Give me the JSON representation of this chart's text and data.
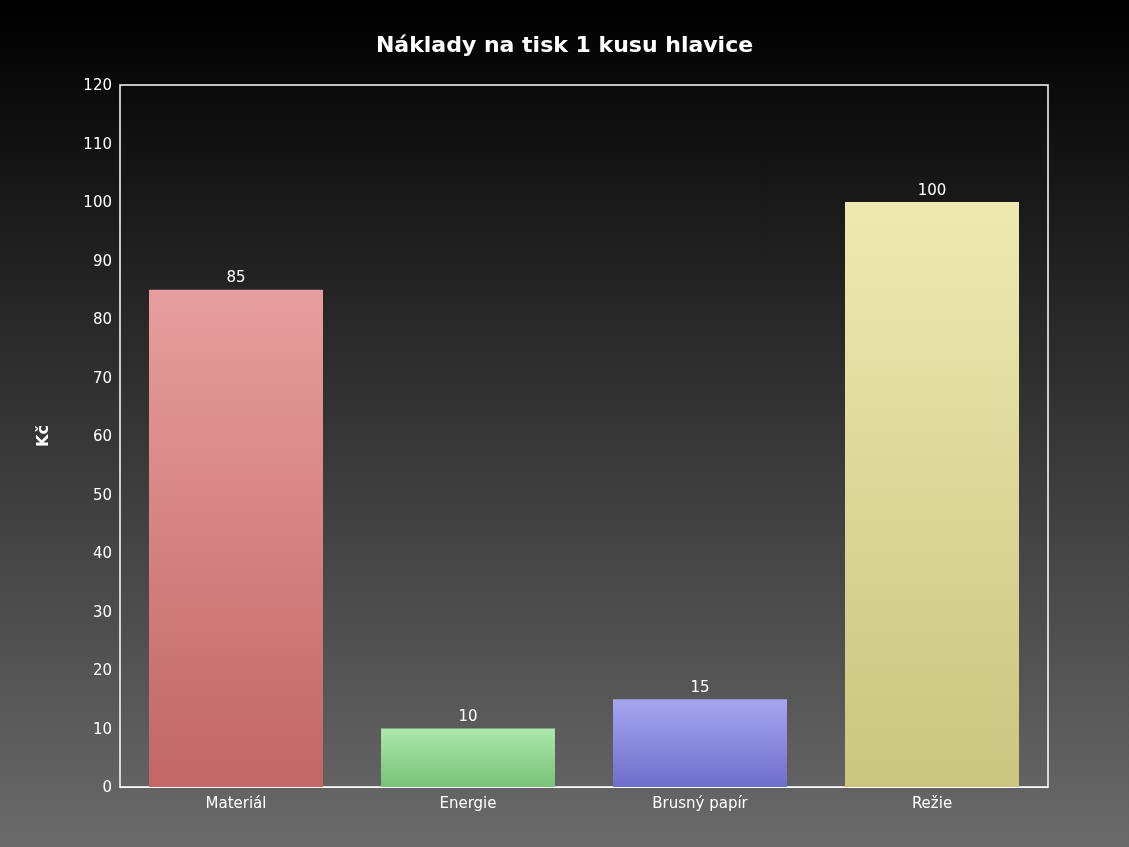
{
  "chart_data": {
    "type": "bar",
    "title": "Náklady na tisk 1 kusu hlavice",
    "ylabel": "Kč",
    "categories": [
      "Materiál",
      "Energie",
      "Brusný papír",
      "Režie"
    ],
    "values": [
      85,
      10,
      15,
      100
    ],
    "colors": [
      "#dc7474",
      "#88dc88",
      "#7e7ee8",
      "#e6e090"
    ],
    "ylim": [
      0,
      120
    ],
    "yticks": [
      0,
      10,
      20,
      30,
      40,
      50,
      60,
      70,
      80,
      90,
      100,
      110,
      120
    ],
    "grid": false,
    "data_labels": true
  }
}
